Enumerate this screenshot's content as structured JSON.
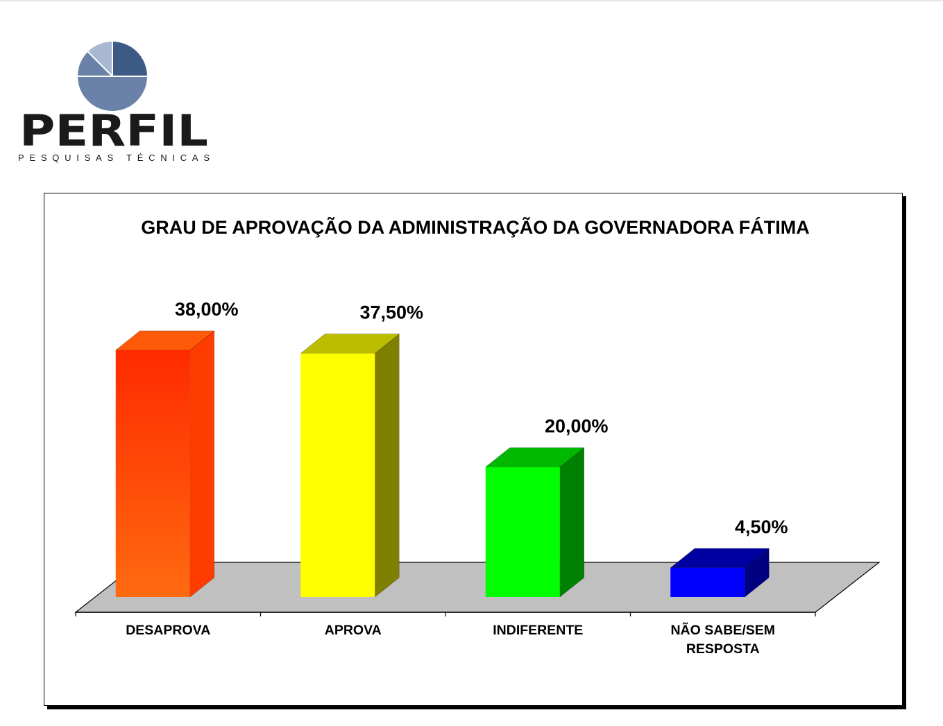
{
  "logo": {
    "name": "PERFIL",
    "tagline": "PESQUISAS TÉCNICAS",
    "colors": {
      "dark": "#3d5a86",
      "mid": "#6b82a8",
      "light": "#a8b8d1",
      "text": "#1a1a1a"
    }
  },
  "chart_data": {
    "type": "bar",
    "title": "GRAU DE APROVAÇÃO DA ADMINISTRAÇÃO DA GOVERNADORA FÁTIMA",
    "categories": [
      "DESAPROVA",
      "APROVA",
      "INDIFERENTE",
      "NÃO SABE/SEM RESPOSTA"
    ],
    "category_lines": [
      [
        "DESAPROVA"
      ],
      [
        "APROVA"
      ],
      [
        "INDIFERENTE"
      ],
      [
        "NÃO SABE/SEM",
        "RESPOSTA"
      ]
    ],
    "values": [
      38.0,
      37.5,
      20.0,
      4.5
    ],
    "value_labels": [
      "38,00%",
      "37,50%",
      "20,00%",
      "4,50%"
    ],
    "unit": "%",
    "ylim": [
      0,
      40
    ],
    "grid": false,
    "legend": "none",
    "style": "3d",
    "colors": [
      {
        "top": "#ff5a0a",
        "front_top": "#ff2a00",
        "front_bottom": "#ff6a10",
        "side": "#ff3c00"
      },
      {
        "top": "#bdbd00",
        "front_top": "#ffff00",
        "front_bottom": "#ffff00",
        "side": "#808000"
      },
      {
        "top": "#00b800",
        "front_top": "#00ff00",
        "front_bottom": "#00ff00",
        "side": "#008000"
      },
      {
        "top": "#0000a0",
        "front_top": "#0000ff",
        "front_bottom": "#0000ff",
        "side": "#000080"
      }
    ],
    "floor_color": "#c0c0c0"
  }
}
